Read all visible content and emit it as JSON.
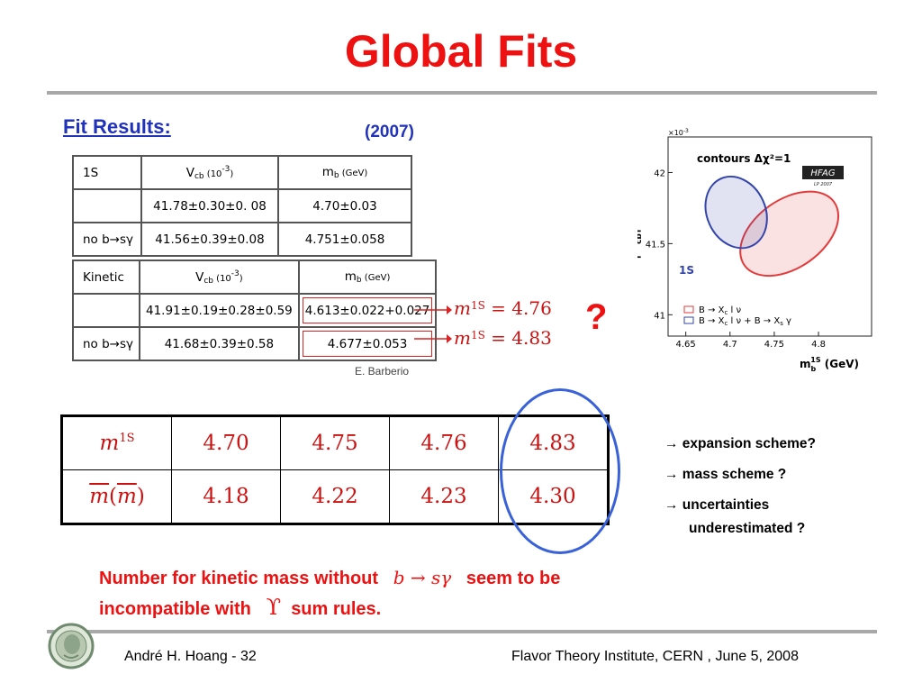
{
  "slide": {
    "title": "Global Fits",
    "fit_results_label": "Fit Results:",
    "year_label": "(2007)",
    "attribution": "E. Barberio",
    "question_mark": "?"
  },
  "table_1s": {
    "header": [
      "1S",
      "V",
      "cb",
      " (10",
      "-3",
      ")",
      "m",
      "b",
      " (GeV)"
    ],
    "rows": [
      [
        "",
        "41.78±0.30±0. 08",
        "4.70±0.03"
      ],
      [
        "no b→sγ",
        "41.56±0.39±0.08",
        "4.751±0.058"
      ]
    ]
  },
  "table_kinetic": {
    "header": [
      "Kinetic",
      "V",
      "cb",
      " (10",
      "-3",
      ")",
      "m",
      "b",
      " (GeV)"
    ],
    "rows": [
      [
        "",
        "41.91±0.19±0.28±0.59",
        "4.613±0.022+0.027"
      ],
      [
        "no b→sγ",
        "41.68±0.39±0.58",
        "4.677±0.053"
      ]
    ]
  },
  "arrow_labels": [
    {
      "m": "m",
      "sup": "1S",
      "rest": " = 4.76"
    },
    {
      "m": "m",
      "sup": "1S",
      "rest": " = 4.83"
    }
  ],
  "comparison_table": {
    "row1_label": {
      "m": "m",
      "sup": "1S"
    },
    "row1_values": [
      "4.70",
      "4.75",
      "4.76",
      "4.83"
    ],
    "row2_label": {
      "m": "m",
      "paren_open": "(",
      "m2": "m",
      "paren_close": ")"
    },
    "row2_values": [
      "4.18",
      "4.22",
      "4.23",
      "4.30"
    ]
  },
  "bullets": {
    "b1": "→ expansion scheme?",
    "b2": "→ mass scheme ?",
    "b3a": "→ uncertainties",
    "b3b": "underestimated ?"
  },
  "statement": {
    "line1a": "Number for kinetic mass  without",
    "math1": "b → sγ",
    "line1b": "seem to be",
    "line2a": "incompatible with",
    "upsilon": "ϒ",
    "line2b": "sum rules."
  },
  "plot": {
    "exponent": "×10",
    "exponent_sup": "-3",
    "contour_label": "contours Δχ²=1",
    "hfag_label": "HFAG",
    "hfag_sub": "LP 2007",
    "scheme_label": "1S",
    "y_label_main": "|V",
    "y_label_sub": "cb",
    "y_label_end": "|",
    "y_ticks": [
      "42",
      "41.5",
      "41"
    ],
    "x_ticks": [
      "4.65",
      "4.7",
      "4.75",
      "4.8"
    ],
    "x_label_main": "m",
    "x_label_sub": "b",
    "x_label_sup": "1S",
    "x_label_end": " (GeV)",
    "legend": [
      "B → X",
      "c",
      " l ν",
      "B → X",
      "c",
      " l ν + B → X",
      "s",
      " γ"
    ],
    "colors": {
      "semileptonic": "#e33b3b",
      "combined": "#3344aa"
    },
    "ellipses": {
      "semileptonic": {
        "cx": 4.767,
        "cy": 41.57,
        "rx": 0.062,
        "ry": 0.24,
        "angle": -35
      },
      "combined": {
        "cx": 4.707,
        "cy": 41.72,
        "rx": 0.033,
        "ry": 0.26,
        "angle": -25
      }
    },
    "x_range": [
      4.63,
      4.86
    ],
    "y_range": [
      40.85,
      42.25
    ]
  },
  "footer": {
    "author": "André H. Hoang  - 32",
    "venue": "Flavor Theory Institute, CERN , June 5, 2008"
  }
}
